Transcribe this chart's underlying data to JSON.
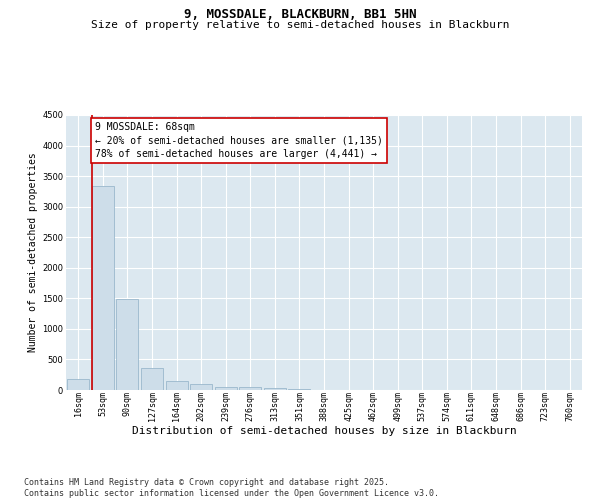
{
  "title": "9, MOSSDALE, BLACKBURN, BB1 5HN",
  "subtitle": "Size of property relative to semi-detached houses in Blackburn",
  "xlabel": "Distribution of semi-detached houses by size in Blackburn",
  "ylabel": "Number of semi-detached properties",
  "footer": "Contains HM Land Registry data © Crown copyright and database right 2025.\nContains public sector information licensed under the Open Government Licence v3.0.",
  "categories": [
    "16sqm",
    "53sqm",
    "90sqm",
    "127sqm",
    "164sqm",
    "202sqm",
    "239sqm",
    "276sqm",
    "313sqm",
    "351sqm",
    "388sqm",
    "425sqm",
    "462sqm",
    "499sqm",
    "537sqm",
    "574sqm",
    "611sqm",
    "648sqm",
    "686sqm",
    "723sqm",
    "760sqm"
  ],
  "values": [
    185,
    3340,
    1490,
    360,
    145,
    95,
    55,
    45,
    30,
    15,
    5,
    0,
    0,
    0,
    0,
    0,
    0,
    0,
    0,
    0,
    0
  ],
  "bar_color": "#cddde9",
  "bar_edge_color": "#9ab8cc",
  "vline_color": "#cc0000",
  "vline_pos": 0.575,
  "annotation_text": "9 MOSSDALE: 68sqm\n← 20% of semi-detached houses are smaller (1,135)\n78% of semi-detached houses are larger (4,441) →",
  "ylim": [
    0,
    4500
  ],
  "yticks": [
    0,
    500,
    1000,
    1500,
    2000,
    2500,
    3000,
    3500,
    4000,
    4500
  ],
  "fig_bg": "#ffffff",
  "plot_bg": "#dce8f0",
  "title_fontsize": 9,
  "subtitle_fontsize": 8,
  "xlabel_fontsize": 8,
  "ylabel_fontsize": 7,
  "tick_fontsize": 6,
  "annotation_fontsize": 7,
  "footer_fontsize": 6
}
